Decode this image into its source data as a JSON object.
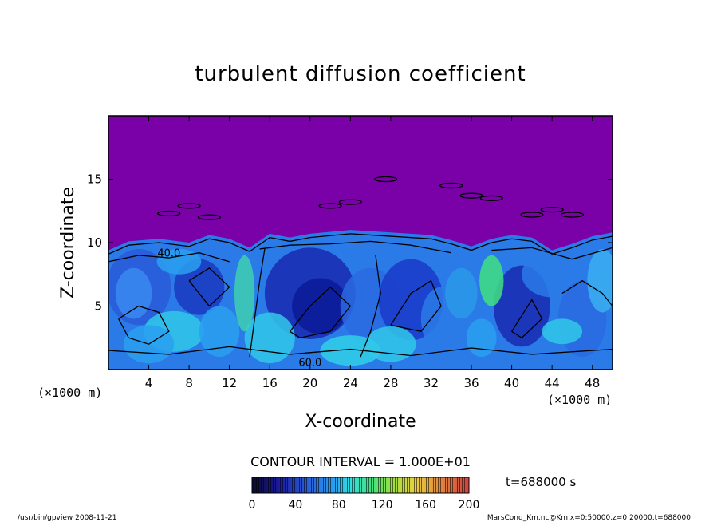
{
  "chart_data": {
    "type": "heatmap",
    "title": "turbulent diffusion coefficient",
    "xlabel": "X-coordinate",
    "ylabel": "Z-coordinate",
    "x_unit": "(×1000 m)",
    "y_unit": "(×1000 m)",
    "xlim": [
      0,
      50
    ],
    "ylim": [
      0,
      20
    ],
    "x_ticks": [
      4,
      8,
      12,
      16,
      20,
      24,
      28,
      32,
      36,
      40,
      44,
      48
    ],
    "y_ticks": [
      5,
      10,
      15
    ],
    "contour_interval_label": "CONTOUR INTERVAL = 1.000E+01",
    "contour_labels": [
      {
        "text": "40.0",
        "x": 6.0,
        "z": 9.2
      },
      {
        "text": "60.0",
        "x": 20.0,
        "z": 0.6
      }
    ],
    "colorbar": {
      "min": 0,
      "max": 200,
      "ticks": [
        0,
        40,
        80,
        120,
        160,
        200
      ],
      "colors": [
        "#0a0a2a",
        "#1a1a9a",
        "#2a5ad8",
        "#2aa0f0",
        "#30e0e0",
        "#40e080",
        "#a0e040",
        "#e8d040",
        "#e08040",
        "#d04040"
      ]
    },
    "time_label": "t=688000 s",
    "background_value_color": "#7a00a8",
    "footer_left": "/usr/bin/gpview   2008-11-21",
    "footer_right": "MarsCond_Km.nc@Km,x=0:50000,z=0:20000,t=688000"
  }
}
